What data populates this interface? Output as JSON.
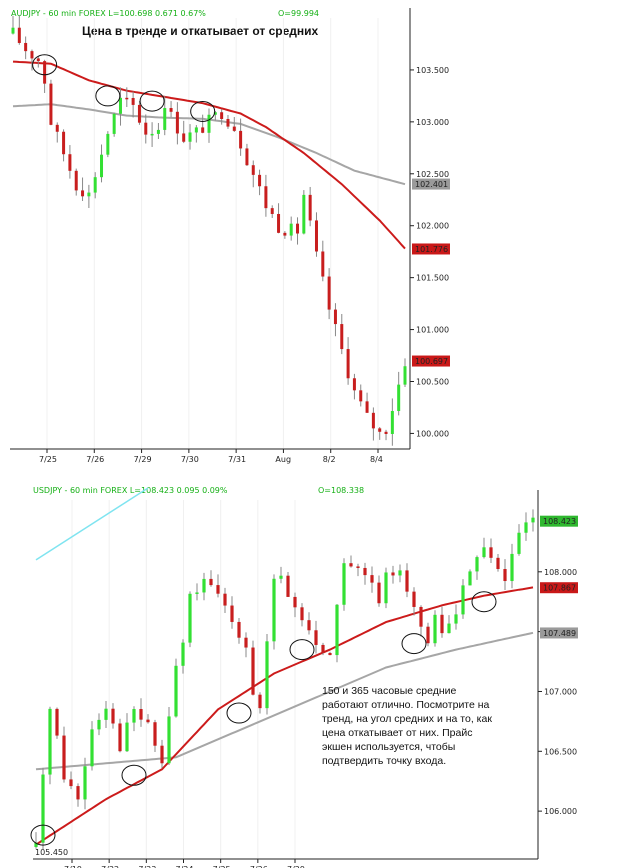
{
  "colors": {
    "up": "#33e033",
    "down": "#c81e1e",
    "wick": "#888888",
    "ma_red": "#cc1b1b",
    "ma_gray": "#a6a6a6",
    "header": "#15b015",
    "trendline": "#7fe4f0",
    "axis": "#222222"
  },
  "chart_data": [
    {
      "type": "candlestick",
      "header": {
        "symbol": "AUDJPY - 60 min  FOREX  L=100.698  0.671  0.67%",
        "open": "O=99.994"
      },
      "title": "Цена в тренде и откатывает от средних",
      "ylim": [
        99.85,
        104.0
      ],
      "yticks": [
        "103.500",
        "103.000",
        "102.500",
        "102.000",
        "101.500",
        "101.000",
        "100.500",
        "100.000"
      ],
      "xticks": [
        "7/25",
        "7/26",
        "7/29",
        "7/30",
        "7/31",
        "Aug",
        "8/2",
        "8/4"
      ],
      "price_tags": [
        {
          "value": 102.401,
          "label": "102.401",
          "series": "ma_slow"
        },
        {
          "value": 101.776,
          "label": "101.776",
          "series": "ma_fast"
        },
        {
          "value": 100.697,
          "label": "100.697",
          "series": "last"
        }
      ],
      "close_path": [
        [
          0,
          103.85
        ],
        [
          2,
          103.7
        ],
        [
          4,
          103.6
        ],
        [
          5,
          103.4
        ],
        [
          6,
          103.0
        ],
        [
          8,
          102.7
        ],
        [
          10,
          102.4
        ],
        [
          12,
          102.3
        ],
        [
          15,
          102.9
        ],
        [
          17,
          103.2
        ],
        [
          19,
          103.15
        ],
        [
          21,
          102.9
        ],
        [
          23,
          102.95
        ],
        [
          24,
          103.2
        ],
        [
          25,
          103.05
        ],
        [
          27,
          102.85
        ],
        [
          29,
          102.9
        ],
        [
          31,
          103.0
        ],
        [
          33,
          103.1
        ],
        [
          35,
          102.95
        ],
        [
          36,
          102.8
        ],
        [
          38,
          102.5
        ],
        [
          40,
          102.2
        ],
        [
          42,
          102.0
        ],
        [
          44,
          101.95
        ],
        [
          45,
          101.95
        ],
        [
          46,
          102.3
        ],
        [
          47,
          102.0
        ],
        [
          48,
          101.7
        ],
        [
          50,
          101.2
        ],
        [
          52,
          100.8
        ],
        [
          54,
          100.4
        ],
        [
          56,
          100.15
        ],
        [
          58,
          100.0
        ],
        [
          59,
          100.05
        ],
        [
          60,
          100.25
        ],
        [
          62,
          100.7
        ]
      ],
      "ma_slow": [
        [
          0,
          103.15
        ],
        [
          6,
          103.17
        ],
        [
          12,
          103.12
        ],
        [
          18,
          103.06
        ],
        [
          24,
          103.04
        ],
        [
          30,
          103.03
        ],
        [
          36,
          102.98
        ],
        [
          42,
          102.85
        ],
        [
          48,
          102.7
        ],
        [
          54,
          102.53
        ],
        [
          62,
          102.4
        ]
      ],
      "ma_fast": [
        [
          0,
          103.58
        ],
        [
          6,
          103.56
        ],
        [
          12,
          103.4
        ],
        [
          18,
          103.3
        ],
        [
          24,
          103.24
        ],
        [
          30,
          103.18
        ],
        [
          36,
          103.08
        ],
        [
          40,
          102.95
        ],
        [
          46,
          102.7
        ],
        [
          52,
          102.4
        ],
        [
          58,
          102.05
        ],
        [
          62,
          101.78
        ]
      ],
      "circles_at": [
        [
          5,
          103.55
        ],
        [
          15,
          103.25
        ],
        [
          22,
          103.2
        ],
        [
          30,
          103.1
        ]
      ]
    },
    {
      "type": "candlestick",
      "header": {
        "symbol": "USDJPY - 60 min  FOREX  L=108.423  0.095  0.09%",
        "open": "O=108.338"
      },
      "ylim": [
        105.6,
        108.6
      ],
      "yticks": [
        "108.000",
        "107.500",
        "107.000",
        "106.500",
        "106.000"
      ],
      "bottom_label": "105.450",
      "xticks": [
        "7/19",
        "7/22",
        "7/23",
        "7/24",
        "7/25",
        "7/26",
        "7/29"
      ],
      "price_tags": [
        {
          "value": 108.423,
          "label": "108.423",
          "series": "last"
        },
        {
          "value": 107.867,
          "label": "107.867",
          "series": "ma_fast"
        },
        {
          "value": 107.489,
          "label": "107.489",
          "series": "ma_slow"
        }
      ],
      "close_path": [
        [
          0,
          105.7
        ],
        [
          2,
          106.9
        ],
        [
          4,
          106.3
        ],
        [
          6,
          106.1
        ],
        [
          8,
          106.7
        ],
        [
          10,
          106.9
        ],
        [
          12,
          106.55
        ],
        [
          14,
          106.85
        ],
        [
          16,
          106.7
        ],
        [
          18,
          106.4
        ],
        [
          19,
          106.8
        ],
        [
          20,
          107.2
        ],
        [
          21,
          107.4
        ],
        [
          22,
          107.8
        ],
        [
          24,
          107.9
        ],
        [
          26,
          107.8
        ],
        [
          28,
          107.6
        ],
        [
          30,
          107.4
        ],
        [
          31,
          107.0
        ],
        [
          32,
          106.85
        ],
        [
          33,
          107.4
        ],
        [
          34,
          107.9
        ],
        [
          35,
          107.95
        ],
        [
          36,
          107.8
        ],
        [
          38,
          107.6
        ],
        [
          40,
          107.4
        ],
        [
          42,
          107.3
        ],
        [
          43,
          107.7
        ],
        [
          44,
          108.1
        ],
        [
          46,
          108.0
        ],
        [
          48,
          107.9
        ],
        [
          49,
          107.7
        ],
        [
          50,
          107.95
        ],
        [
          52,
          108.05
        ],
        [
          54,
          107.7
        ],
        [
          55,
          107.5
        ],
        [
          56,
          107.4
        ],
        [
          57,
          107.6
        ],
        [
          58,
          107.5
        ],
        [
          60,
          107.65
        ],
        [
          62,
          108.05
        ],
        [
          64,
          108.2
        ],
        [
          65,
          108.1
        ],
        [
          66,
          108.05
        ],
        [
          67,
          107.9
        ],
        [
          68,
          108.15
        ],
        [
          70,
          108.4
        ],
        [
          71,
          108.42
        ]
      ],
      "ma_slow": [
        [
          0,
          106.35
        ],
        [
          10,
          106.4
        ],
        [
          20,
          106.45
        ],
        [
          30,
          106.7
        ],
        [
          40,
          106.95
        ],
        [
          50,
          107.2
        ],
        [
          60,
          107.35
        ],
        [
          71,
          107.49
        ]
      ],
      "ma_fast": [
        [
          0,
          105.72
        ],
        [
          10,
          106.1
        ],
        [
          18,
          106.35
        ],
        [
          26,
          106.85
        ],
        [
          34,
          107.15
        ],
        [
          42,
          107.35
        ],
        [
          50,
          107.58
        ],
        [
          58,
          107.72
        ],
        [
          64,
          107.8
        ],
        [
          71,
          107.87
        ]
      ],
      "trendline": [
        [
          0,
          108.1
        ],
        [
          16,
          108.7
        ]
      ],
      "circles_at": [
        [
          1,
          105.8
        ],
        [
          14,
          106.3
        ],
        [
          29,
          106.82
        ],
        [
          38,
          107.35
        ],
        [
          54,
          107.4
        ],
        [
          64,
          107.75
        ]
      ],
      "annotation": [
        "150 и 365 часовые средние",
        "работают отлично. Посмотрите на",
        "тренд, на угол средних и на то, как",
        "цена откатывает от них. Прайс",
        "экшен используется, чтобы",
        "подтвердить точку входа."
      ]
    }
  ]
}
